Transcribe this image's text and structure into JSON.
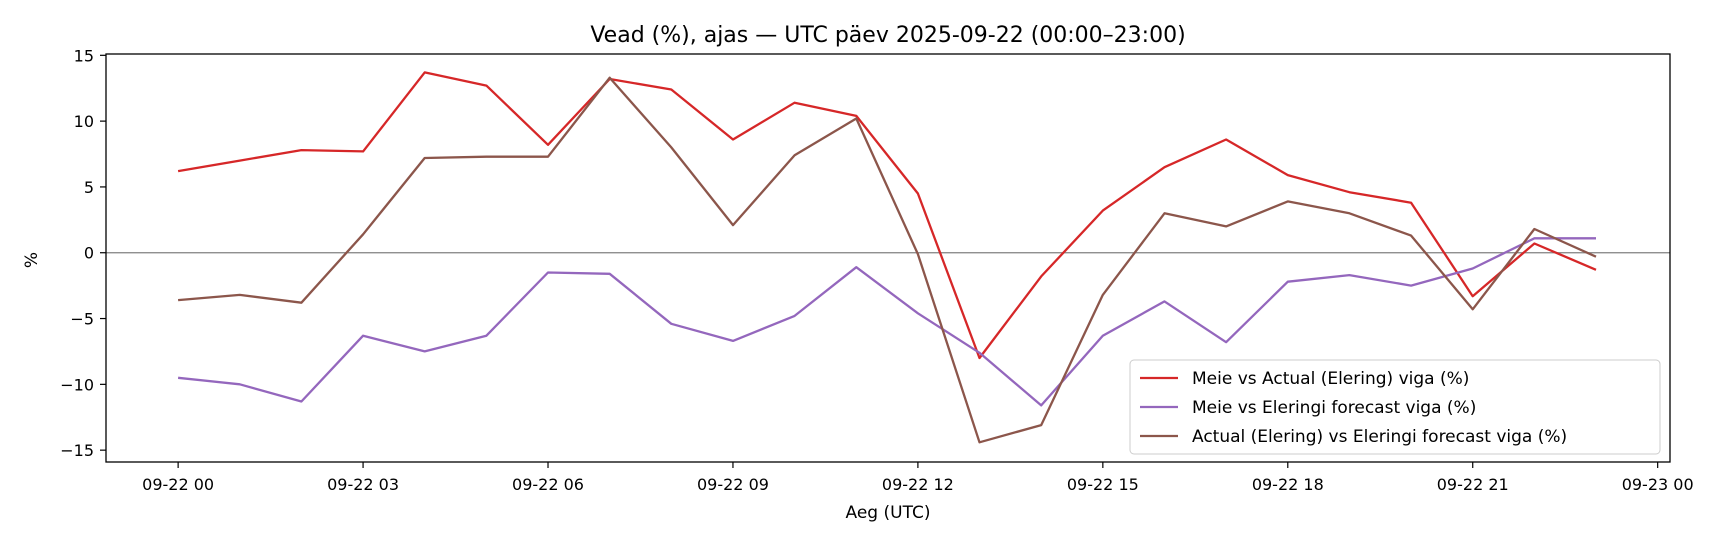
{
  "chart_data": {
    "type": "line",
    "title": "Vead (%), ajas — UTC päev 2025-09-22 (00:00–23:00)",
    "xlabel": "Aeg (UTC)",
    "ylabel": "%",
    "x": [
      "00:00",
      "01:00",
      "02:00",
      "03:00",
      "04:00",
      "05:00",
      "06:00",
      "07:00",
      "08:00",
      "09:00",
      "10:00",
      "11:00",
      "12:00",
      "13:00",
      "14:00",
      "15:00",
      "16:00",
      "17:00",
      "18:00",
      "19:00",
      "20:00",
      "21:00",
      "22:00",
      "23:00"
    ],
    "xticks": [
      "09-22 00",
      "09-22 03",
      "09-22 06",
      "09-22 09",
      "09-22 12",
      "09-22 15",
      "09-22 18",
      "09-22 21",
      "09-23 00"
    ],
    "xlim_hours": [
      -1.17,
      24.2
    ],
    "yticks": [
      15,
      10,
      5,
      0,
      -5,
      -10,
      -15
    ],
    "ylim": [
      -15.9,
      15.1
    ],
    "zero_line": true,
    "legend_position": "lower right",
    "series": [
      {
        "name": "Meie vs Actual (Elering) viga (%)",
        "color": "#d62728",
        "values": [
          6.2,
          7.0,
          7.8,
          7.7,
          13.7,
          12.7,
          8.2,
          13.2,
          12.4,
          8.6,
          11.4,
          10.4,
          4.5,
          -8.0,
          -1.8,
          3.2,
          6.5,
          8.6,
          5.9,
          4.6,
          3.8,
          -3.3,
          0.7,
          -1.3
        ]
      },
      {
        "name": "Meie vs Eleringi forecast viga (%)",
        "color": "#9467bd",
        "values": [
          -9.5,
          -10.0,
          -11.3,
          -6.3,
          -7.5,
          -6.3,
          -1.5,
          -1.6,
          -5.4,
          -6.7,
          -4.8,
          -1.1,
          -4.6,
          -7.6,
          -11.6,
          -6.3,
          -3.7,
          -6.8,
          -2.2,
          -1.7,
          -2.5,
          -1.2,
          1.1,
          1.1
        ]
      },
      {
        "name": "Actual (Elering) vs Eleringi forecast viga (%)",
        "color": "#8c564b",
        "values": [
          -3.6,
          -3.2,
          -3.8,
          1.4,
          7.2,
          7.3,
          7.3,
          13.3,
          8.0,
          2.1,
          7.4,
          10.2,
          -0.1,
          -14.4,
          -13.1,
          -3.2,
          3.0,
          2.0,
          3.9,
          3.0,
          1.3,
          -4.3,
          1.8,
          -0.3
        ]
      }
    ]
  }
}
